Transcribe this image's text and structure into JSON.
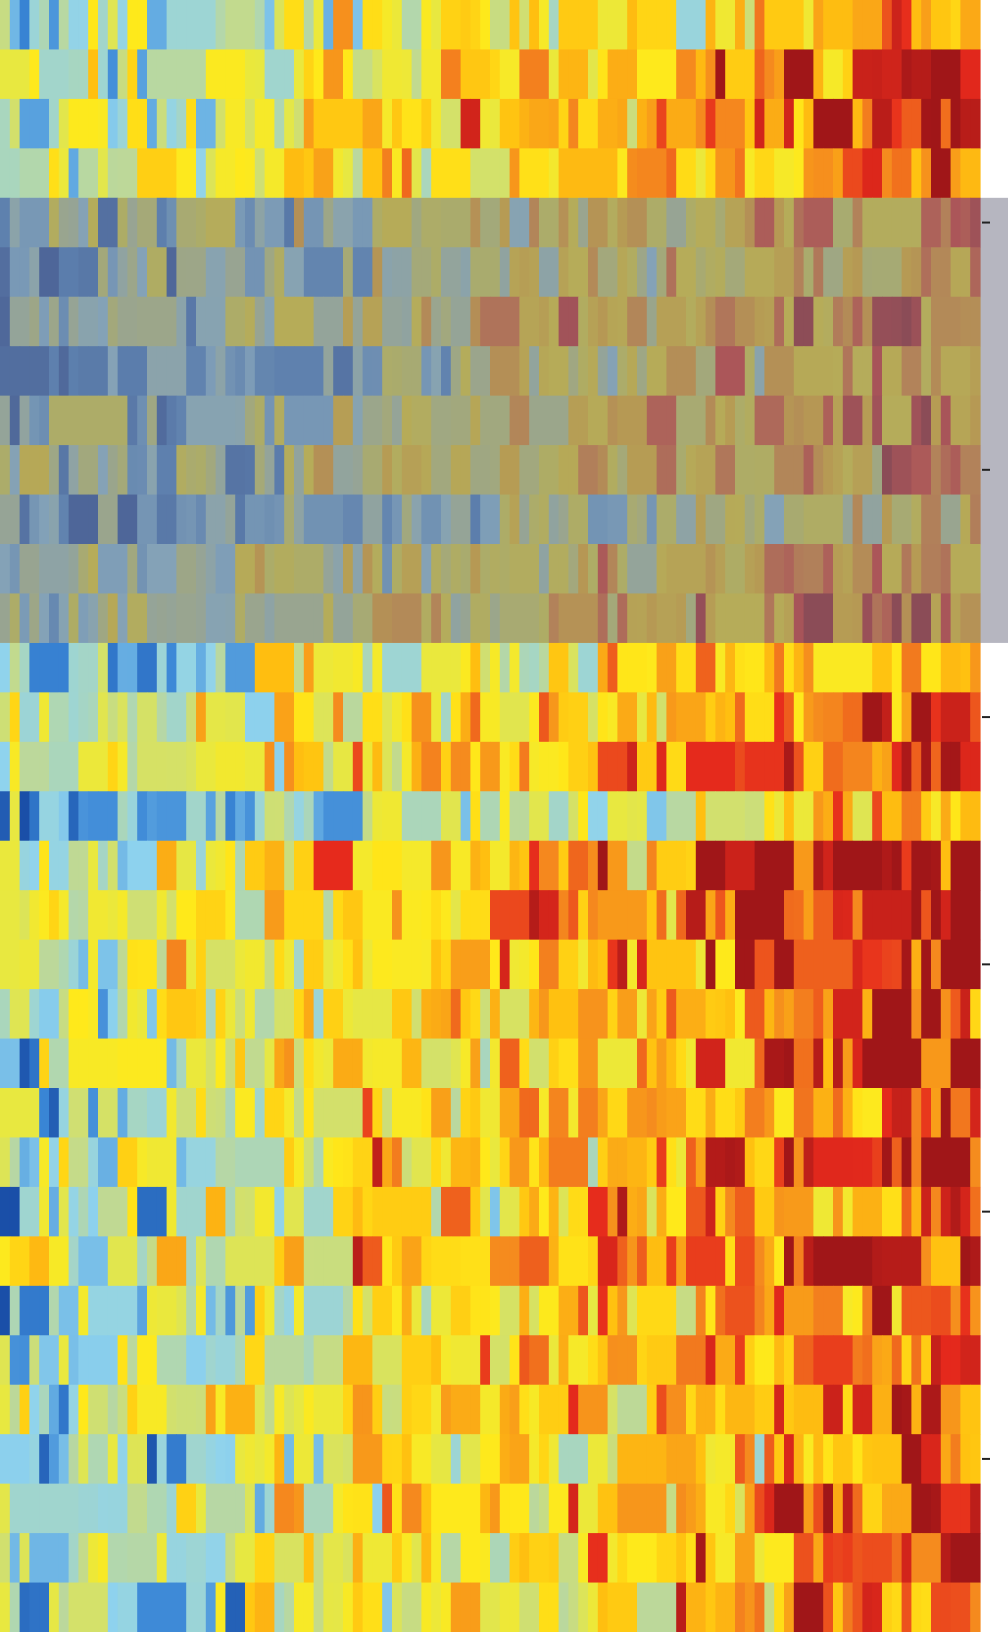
{
  "chart_data": {
    "type": "heatmap",
    "n_rows": 33,
    "n_cols": 100,
    "value_range": [
      -1,
      1
    ],
    "colormap": [
      {
        "value": -1.0,
        "color": "#1a4fa8"
      },
      {
        "value": -0.7,
        "color": "#3a86d6"
      },
      {
        "value": -0.45,
        "color": "#8fd3ee"
      },
      {
        "value": -0.2,
        "color": "#bcd89a"
      },
      {
        "value": 0.0,
        "color": "#e8e840"
      },
      {
        "value": 0.2,
        "color": "#ffe91a"
      },
      {
        "value": 0.4,
        "color": "#ffc010"
      },
      {
        "value": 0.6,
        "color": "#f58a1e"
      },
      {
        "value": 0.8,
        "color": "#e62a1c"
      },
      {
        "value": 1.0,
        "color": "#a01618"
      }
    ],
    "row_bias": [
      -0.1,
      0.05,
      0.1,
      0.0,
      -0.15,
      -0.25,
      -0.05,
      -0.3,
      -0.2,
      -0.1,
      -0.4,
      -0.1,
      0.0,
      -0.2,
      0.05,
      0.1,
      -0.35,
      0.15,
      0.2,
      0.2,
      0.05,
      0.1,
      0.0,
      0.1,
      0.0,
      0.25,
      -0.05,
      0.1,
      0.05,
      -0.15,
      0.05,
      0.05,
      -0.1
    ],
    "column_trend": {
      "start": -0.35,
      "end": 0.75
    },
    "highlight_band": {
      "label": "",
      "row_start": 4,
      "row_end": 12,
      "overlay_color": "#7a7a8c",
      "overlay_opacity": 0.55
    },
    "tick_marks": {
      "side": "right",
      "rows": [
        4,
        9,
        14,
        19,
        24,
        29
      ]
    },
    "title": "",
    "xlabel": "",
    "ylabel": ""
  }
}
